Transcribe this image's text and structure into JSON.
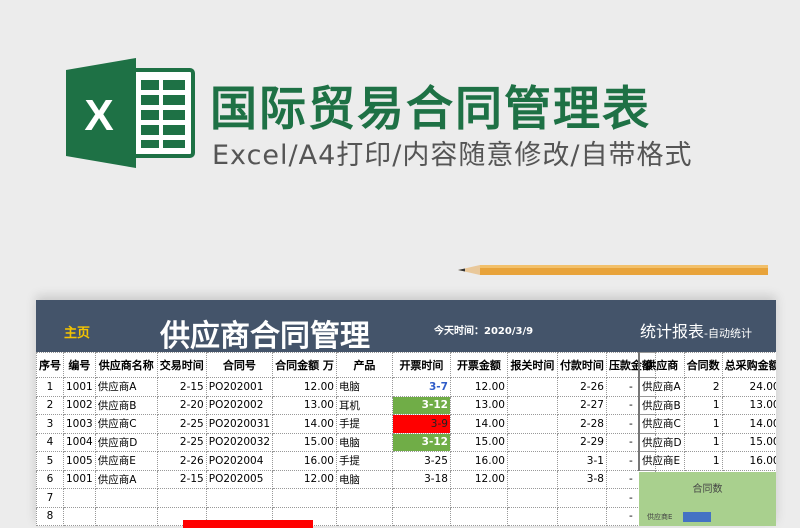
{
  "header": {
    "title": "国际贸易合同管理表",
    "subtitle": "Excel/A4打印/内容随意修改/自带格式",
    "logo_letter": "X"
  },
  "colors": {
    "excel_green": "#1e7145",
    "band": "#44546a",
    "home": "#f5c400",
    "green_cell": "#70ad47",
    "red_cell": "#ff0000",
    "chart_bg": "#a9d08e",
    "bar": "#4472c4"
  },
  "sheet": {
    "home": "主页",
    "title": "供应商合同管理",
    "today": "今天时间：2020/3/9",
    "stat_title": "统计报表",
    "stat_sub": "-自动统计"
  },
  "table": {
    "columns": [
      "序号",
      "编号",
      "供应商名称",
      "交易时间",
      "合同号",
      "合同金额 万",
      "产品",
      "开票时间",
      "开票金额",
      "报关时间",
      "付款时间",
      "压款金额"
    ],
    "rows": [
      [
        "1",
        "1001",
        "供应商A",
        "2-15",
        "PO202001",
        "12.00",
        "电脑",
        "3-7",
        "12.00",
        "",
        "2-26",
        "-"
      ],
      [
        "2",
        "1002",
        "供应商B",
        "2-20",
        "PO202002",
        "13.00",
        "耳机",
        "3-12",
        "13.00",
        "",
        "2-27",
        "-"
      ],
      [
        "3",
        "1003",
        "供应商C",
        "2-25",
        "PO2020031",
        "14.00",
        "手提",
        "3-9",
        "14.00",
        "",
        "2-28",
        "-"
      ],
      [
        "4",
        "1004",
        "供应商D",
        "2-25",
        "PO2020032",
        "15.00",
        "电脑",
        "3-12",
        "15.00",
        "",
        "2-29",
        "-"
      ],
      [
        "5",
        "1005",
        "供应商E",
        "2-26",
        "PO202004",
        "16.00",
        "手提",
        "3-25",
        "16.00",
        "",
        "3-1",
        "-"
      ],
      [
        "6",
        "1001",
        "供应商A",
        "2-15",
        "PO202005",
        "12.00",
        "电脑",
        "3-18",
        "12.00",
        "",
        "3-8",
        "-"
      ],
      [
        "7",
        "",
        "",
        "",
        "",
        "",
        "",
        "",
        "",
        "",
        "",
        "-"
      ],
      [
        "8",
        "",
        "",
        "",
        "",
        "",
        "",
        "",
        "",
        "",
        "",
        "-"
      ]
    ],
    "invoice_status": [
      "blue",
      "green",
      "red",
      "green",
      "",
      "",
      "",
      ""
    ]
  },
  "stats": {
    "columns": [
      "供应商",
      "合同数",
      "总采购金额"
    ],
    "rows": [
      [
        "供应商A",
        "2",
        "24.00"
      ],
      [
        "供应商B",
        "1",
        "13.00"
      ],
      [
        "供应商C",
        "1",
        "14.00"
      ],
      [
        "供应商D",
        "1",
        "15.00"
      ],
      [
        "供应商E",
        "1",
        "16.00"
      ]
    ]
  },
  "chart_data": {
    "type": "bar",
    "title": "合同数",
    "categories": [
      "供应商E"
    ],
    "values": [
      1
    ]
  }
}
